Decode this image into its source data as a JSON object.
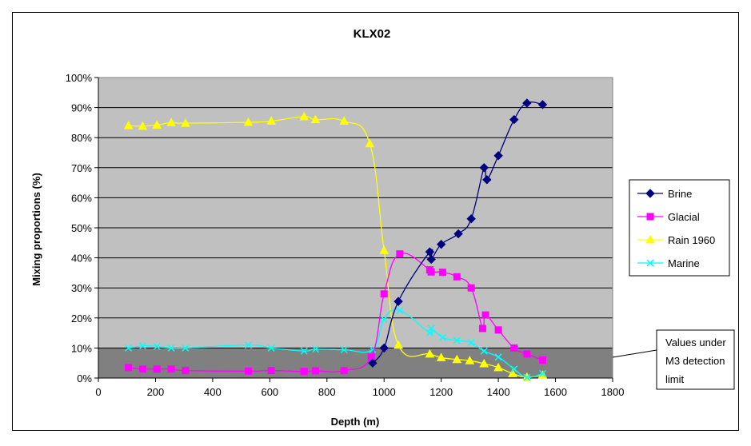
{
  "chart_data": {
    "type": "line",
    "title": "KLX02",
    "xlabel": "Depth (m)",
    "ylabel": "Mixing proportions (%)",
    "xlim": [
      0,
      1800
    ],
    "ylim": [
      0,
      100
    ],
    "x_ticks": [
      "0",
      "200",
      "400",
      "600",
      "800",
      "1000",
      "1200",
      "1400",
      "1600",
      "1800"
    ],
    "y_ticks": [
      "0%",
      "10%",
      "20%",
      "30%",
      "40%",
      "50%",
      "60%",
      "70%",
      "80%",
      "90%",
      "100%"
    ],
    "grid": "horizontal",
    "legend_position": "right",
    "detection_limit": {
      "value": 10,
      "label": [
        "Values under",
        "M3 detection",
        "limit"
      ]
    },
    "colors": {
      "plot_background": "#c0c0c0",
      "detection_band": "#808080",
      "brine": "#000080",
      "glacial": "#ff00ff",
      "rain": "#ffff00",
      "marine": "#00ffff"
    },
    "series": [
      {
        "name": "Brine",
        "marker": "diamond",
        "color": "#000080",
        "points": [
          [
            960,
            5
          ],
          [
            1000,
            10
          ],
          [
            1050,
            25.5
          ],
          [
            1160,
            42
          ],
          [
            1165,
            39.5
          ],
          [
            1200,
            44.5
          ],
          [
            1260,
            48
          ],
          [
            1305,
            53
          ],
          [
            1350,
            70
          ],
          [
            1360,
            66
          ],
          [
            1400,
            74
          ],
          [
            1455,
            86
          ],
          [
            1500,
            91.5
          ],
          [
            1555,
            91
          ]
        ]
      },
      {
        "name": "Glacial",
        "marker": "square",
        "color": "#ff00ff",
        "points": [
          [
            105,
            3.5
          ],
          [
            155,
            3
          ],
          [
            205,
            3
          ],
          [
            255,
            3
          ],
          [
            305,
            2.5
          ],
          [
            525,
            2.3
          ],
          [
            605,
            2.5
          ],
          [
            720,
            2.2
          ],
          [
            760,
            2.4
          ],
          [
            860,
            2.5
          ],
          [
            955,
            7
          ],
          [
            1000,
            28
          ],
          [
            1055,
            41.3
          ],
          [
            1160,
            36
          ],
          [
            1165,
            35.3
          ],
          [
            1205,
            35.2
          ],
          [
            1255,
            33.7
          ],
          [
            1305,
            30
          ],
          [
            1345,
            16.5
          ],
          [
            1355,
            21
          ],
          [
            1400,
            16
          ],
          [
            1455,
            10
          ],
          [
            1500,
            8
          ],
          [
            1555,
            6
          ]
        ]
      },
      {
        "name": "Rain 1960",
        "marker": "triangle",
        "color": "#ffff00",
        "points": [
          [
            105,
            84
          ],
          [
            155,
            83.8
          ],
          [
            205,
            84.2
          ],
          [
            255,
            85
          ],
          [
            305,
            84.8
          ],
          [
            525,
            85.1
          ],
          [
            605,
            85.5
          ],
          [
            720,
            87
          ],
          [
            760,
            86
          ],
          [
            860,
            85.5
          ],
          [
            950,
            78
          ],
          [
            1000,
            42.5
          ],
          [
            1050,
            11
          ],
          [
            1160,
            8
          ],
          [
            1200,
            6.8
          ],
          [
            1255,
            6.2
          ],
          [
            1300,
            5.8
          ],
          [
            1350,
            4.8
          ],
          [
            1400,
            3.5
          ],
          [
            1450,
            1.5
          ],
          [
            1500,
            0.3
          ],
          [
            1555,
            1
          ]
        ]
      },
      {
        "name": "Marine",
        "marker": "x",
        "color": "#00ffff",
        "points": [
          [
            105,
            10
          ],
          [
            155,
            10.7
          ],
          [
            205,
            10.5
          ],
          [
            255,
            10
          ],
          [
            305,
            10
          ],
          [
            525,
            11
          ],
          [
            605,
            10
          ],
          [
            720,
            9
          ],
          [
            760,
            9.6
          ],
          [
            860,
            9.4
          ],
          [
            960,
            9.5
          ],
          [
            1000,
            19.5
          ],
          [
            1055,
            22.5
          ],
          [
            1160,
            15
          ],
          [
            1165,
            16.5
          ],
          [
            1205,
            13.5
          ],
          [
            1255,
            12.5
          ],
          [
            1305,
            11.8
          ],
          [
            1350,
            9
          ],
          [
            1400,
            7
          ],
          [
            1455,
            3
          ],
          [
            1500,
            0.2
          ],
          [
            1555,
            1.5
          ]
        ]
      }
    ]
  }
}
